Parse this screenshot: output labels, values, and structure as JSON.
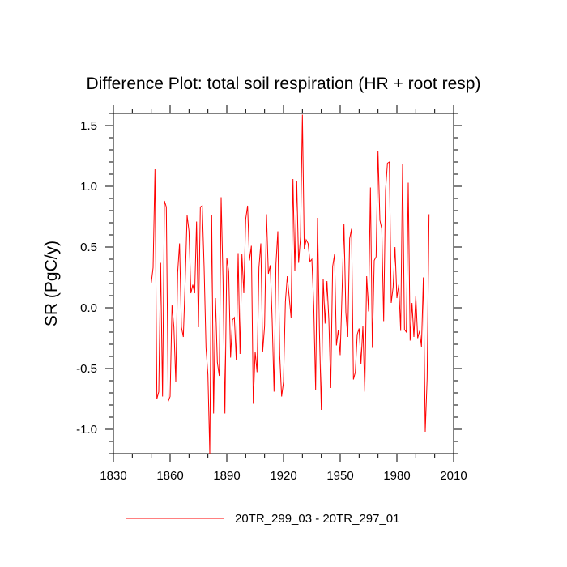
{
  "chart_data": {
    "type": "line",
    "title": "Difference Plot: total soil respiration (HR + root resp)",
    "xlabel": "",
    "ylabel": "SR  (PgC/y)",
    "xlim": [
      1830,
      2010
    ],
    "ylim": [
      -1.2,
      1.6
    ],
    "xticks": [
      1830,
      1860,
      1890,
      1920,
      1950,
      1980,
      2010
    ],
    "xtick_labels": [
      "1830",
      "1860",
      "1890",
      "1920",
      "1950",
      "1980",
      "2010"
    ],
    "yticks": [
      1.5,
      1.0,
      0.5,
      0.0,
      -0.5,
      -1.0
    ],
    "ytick_labels": [
      "1.5",
      "1.0",
      "0.5",
      "0.0",
      "-0.5",
      "-1.0"
    ],
    "legend_position": "bottom-center",
    "series": [
      {
        "name": "20TR_299_03 - 20TR_297_01",
        "color": "#ff0000",
        "x_start": 1850,
        "x_step": 1,
        "values": [
          0.2,
          0.33,
          1.14,
          -0.75,
          -0.69,
          0.37,
          -0.73,
          0.88,
          0.83,
          -0.77,
          -0.73,
          0.02,
          -0.16,
          -0.61,
          0.29,
          0.53,
          -0.16,
          -0.24,
          0.23,
          0.76,
          0.63,
          0.12,
          0.19,
          0.12,
          0.71,
          -0.16,
          0.83,
          0.84,
          0.33,
          -0.33,
          -0.55,
          -1.2,
          0.76,
          -0.87,
          0.08,
          -0.45,
          -0.56,
          0.91,
          0.23,
          -0.87,
          0.41,
          0.3,
          -0.41,
          -0.1,
          -0.08,
          -0.43,
          0.45,
          -0.38,
          0.44,
          0.12,
          0.73,
          0.84,
          0.39,
          0.51,
          -0.79,
          -0.36,
          -0.53,
          0.33,
          0.53,
          -0.36,
          -0.15,
          0.77,
          0.28,
          0.35,
          -0.1,
          -0.69,
          0.36,
          0.63,
          -0.39,
          -0.73,
          -0.61,
          0.05,
          0.26,
          0.09,
          -0.08,
          1.06,
          0.3,
          1.04,
          0.37,
          0.58,
          1.59,
          0.48,
          0.56,
          0.53,
          0.38,
          0.4,
          0.02,
          -0.68,
          0.74,
          -0.19,
          -0.84,
          0.24,
          -0.13,
          0.22,
          -0.1,
          -0.66,
          0.34,
          0.44,
          -0.31,
          -0.18,
          -0.39,
          0.14,
          0.69,
          -0.04,
          -0.24,
          0.57,
          0.65,
          -0.59,
          -0.53,
          -0.22,
          -0.17,
          -0.46,
          -0.15,
          -0.69,
          0.26,
          -0.03,
          0.99,
          -0.33,
          0.39,
          0.42,
          1.29,
          0.72,
          0.65,
          -0.11,
          0.97,
          1.19,
          1.2,
          0.04,
          0.17,
          0.5,
          0.08,
          0.19,
          -0.19,
          1.18,
          -0.18,
          -0.2,
          1.03,
          -0.27,
          0.04,
          -0.24,
          0.1,
          -0.25,
          -0.19,
          -0.32,
          0.25,
          -1.02,
          -0.58,
          0.77
        ]
      }
    ]
  }
}
